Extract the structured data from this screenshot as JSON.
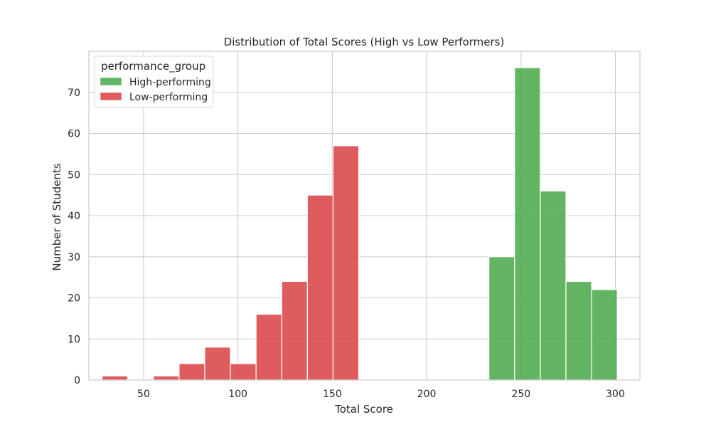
{
  "chart_data": {
    "type": "histogram",
    "title": "Distribution of Total Scores (High vs Low Performers)",
    "xlabel": "Total Score",
    "ylabel": "Number of Students",
    "xlim": [
      21,
      313
    ],
    "ylim": [
      0,
      80
    ],
    "xticks": [
      50,
      100,
      150,
      200,
      250,
      300
    ],
    "yticks": [
      0,
      10,
      20,
      30,
      40,
      50,
      60,
      70
    ],
    "grid": true,
    "legend": {
      "title": "performance_group",
      "placement": "top-left",
      "entries": [
        "High-performing",
        "Low-performing"
      ]
    },
    "series": [
      {
        "name": "High-performing",
        "color": "#4dab4d",
        "bins": [
          {
            "x0": 233,
            "x1": 246.6,
            "count": 30
          },
          {
            "x0": 246.6,
            "x1": 260.2,
            "count": 76
          },
          {
            "x0": 260.2,
            "x1": 273.8,
            "count": 46
          },
          {
            "x0": 273.8,
            "x1": 287.4,
            "count": 24
          },
          {
            "x0": 287.4,
            "x1": 301,
            "count": 22
          }
        ]
      },
      {
        "name": "Low-performing",
        "color": "#d94548",
        "bins": [
          {
            "x0": 28,
            "x1": 41.6,
            "count": 1
          },
          {
            "x0": 41.6,
            "x1": 55.2,
            "count": 0
          },
          {
            "x0": 55.2,
            "x1": 68.8,
            "count": 1
          },
          {
            "x0": 68.8,
            "x1": 82.4,
            "count": 4
          },
          {
            "x0": 82.4,
            "x1": 96,
            "count": 8
          },
          {
            "x0": 96,
            "x1": 109.6,
            "count": 4
          },
          {
            "x0": 109.6,
            "x1": 123.2,
            "count": 16
          },
          {
            "x0": 123.2,
            "x1": 136.8,
            "count": 24
          },
          {
            "x0": 136.8,
            "x1": 150.4,
            "count": 45
          },
          {
            "x0": 150.4,
            "x1": 164,
            "count": 57
          }
        ]
      }
    ]
  }
}
